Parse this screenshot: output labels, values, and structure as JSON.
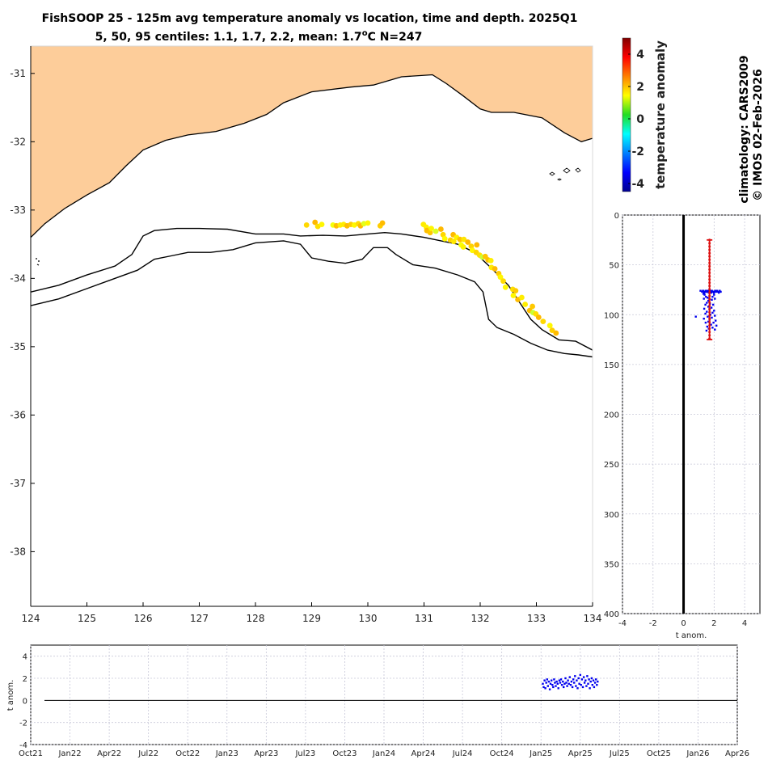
{
  "title": {
    "line1": "FishSOOP 25 - 125m avg temperature anomaly vs location, time and depth. 2025Q1",
    "line2_prefix": "5, 50, 95 centiles: 1.1, 1.7, 2.2, mean: 1.7",
    "line2_degree": "o",
    "line2_suffix": "C N=247"
  },
  "side_text": {
    "climatology": "climatology: CARS2009",
    "credit": "© IMOS 02-Feb-2026"
  },
  "colors": {
    "land": "#fdcd9a",
    "coast": "#000000",
    "profile_points": "#0000ee",
    "centile_bar": "#dd1111",
    "timeseries_points": "#0000ee"
  },
  "chart_data": [
    {
      "type": "scatter",
      "name": "map",
      "xlim": [
        124,
        134
      ],
      "ylim": [
        -38.8,
        -30.6
      ],
      "xticks": [
        124,
        125,
        126,
        127,
        128,
        129,
        130,
        131,
        132,
        133,
        134
      ],
      "yticks": [
        -31,
        -32,
        -33,
        -34,
        -35,
        -36,
        -37,
        -38
      ],
      "xtick_labels": [
        "124",
        "125",
        "126",
        "127",
        "128",
        "129",
        "130",
        "131",
        "132",
        "133",
        "134"
      ],
      "ytick_labels": [
        "-31",
        "-32",
        "-33",
        "-34",
        "-35",
        "-36",
        "-37",
        "-38"
      ],
      "coastline": [
        [
          124,
          -33.4
        ],
        [
          124.25,
          -33.2
        ],
        [
          124.6,
          -32.98
        ],
        [
          125,
          -32.78
        ],
        [
          125.4,
          -32.6
        ],
        [
          125.7,
          -32.35
        ],
        [
          126,
          -32.12
        ],
        [
          126.4,
          -31.98
        ],
        [
          126.8,
          -31.9
        ],
        [
          127.3,
          -31.85
        ],
        [
          127.8,
          -31.73
        ],
        [
          128.2,
          -31.6
        ],
        [
          128.5,
          -31.43
        ],
        [
          129,
          -31.27
        ],
        [
          129.7,
          -31.2
        ],
        [
          130.1,
          -31.17
        ],
        [
          130.6,
          -31.05
        ],
        [
          131.15,
          -31.02
        ],
        [
          131.4,
          -31.15
        ],
        [
          131.7,
          -31.33
        ],
        [
          132.0,
          -31.52
        ],
        [
          132.2,
          -31.57
        ],
        [
          132.6,
          -31.57
        ],
        [
          133.1,
          -31.65
        ],
        [
          133.5,
          -31.87
        ],
        [
          133.8,
          -32.0
        ],
        [
          134,
          -31.95
        ]
      ],
      "isobath_shallow": [
        [
          124,
          -34.2
        ],
        [
          124.5,
          -34.1
        ],
        [
          125,
          -33.95
        ],
        [
          125.5,
          -33.82
        ],
        [
          125.8,
          -33.65
        ],
        [
          126.0,
          -33.38
        ],
        [
          126.2,
          -33.3
        ],
        [
          126.6,
          -33.27
        ],
        [
          127.0,
          -33.27
        ],
        [
          127.5,
          -33.28
        ],
        [
          128.0,
          -33.35
        ],
        [
          128.5,
          -33.35
        ],
        [
          128.8,
          -33.38
        ],
        [
          129.2,
          -33.37
        ],
        [
          129.6,
          -33.38
        ],
        [
          130.0,
          -33.35
        ],
        [
          130.3,
          -33.33
        ],
        [
          130.6,
          -33.35
        ],
        [
          131.0,
          -33.4
        ],
        [
          131.3,
          -33.45
        ],
        [
          131.6,
          -33.5
        ],
        [
          131.9,
          -33.62
        ],
        [
          132.2,
          -33.85
        ],
        [
          132.5,
          -34.1
        ],
        [
          132.7,
          -34.35
        ],
        [
          132.9,
          -34.6
        ],
        [
          133.1,
          -34.75
        ],
        [
          133.4,
          -34.9
        ],
        [
          133.7,
          -34.92
        ],
        [
          134,
          -35.05
        ]
      ],
      "isobath_deep": [
        [
          124,
          -34.4
        ],
        [
          124.5,
          -34.3
        ],
        [
          125,
          -34.15
        ],
        [
          125.5,
          -34.0
        ],
        [
          125.9,
          -33.88
        ],
        [
          126.2,
          -33.72
        ],
        [
          126.5,
          -33.67
        ],
        [
          126.8,
          -33.62
        ],
        [
          127.2,
          -33.62
        ],
        [
          127.6,
          -33.58
        ],
        [
          128.0,
          -33.48
        ],
        [
          128.5,
          -33.45
        ],
        [
          128.8,
          -33.5
        ],
        [
          129.0,
          -33.7
        ],
        [
          129.3,
          -33.75
        ],
        [
          129.6,
          -33.78
        ],
        [
          129.9,
          -33.72
        ],
        [
          130.1,
          -33.55
        ],
        [
          130.35,
          -33.55
        ],
        [
          130.5,
          -33.65
        ],
        [
          130.8,
          -33.8
        ],
        [
          131.2,
          -33.85
        ],
        [
          131.6,
          -33.95
        ],
        [
          131.9,
          -34.05
        ],
        [
          132.05,
          -34.2
        ],
        [
          132.15,
          -34.6
        ],
        [
          132.3,
          -34.72
        ],
        [
          132.6,
          -34.82
        ],
        [
          132.9,
          -34.95
        ],
        [
          133.2,
          -35.05
        ],
        [
          133.5,
          -35.1
        ],
        [
          133.75,
          -35.12
        ],
        [
          134,
          -35.15
        ]
      ],
      "points": [
        [
          128.91,
          -33.22
        ],
        [
          129.06,
          -33.18
        ],
        [
          129.11,
          -33.24
        ],
        [
          129.18,
          -33.21
        ],
        [
          129.38,
          -33.22
        ],
        [
          129.44,
          -33.23
        ],
        [
          129.51,
          -33.22
        ],
        [
          129.57,
          -33.21
        ],
        [
          129.63,
          -33.23
        ],
        [
          129.7,
          -33.21
        ],
        [
          129.76,
          -33.22
        ],
        [
          129.83,
          -33.2
        ],
        [
          129.87,
          -33.23
        ],
        [
          129.93,
          -33.2
        ],
        [
          130.0,
          -33.19
        ],
        [
          130.22,
          -33.23
        ],
        [
          130.26,
          -33.19
        ],
        [
          130.99,
          -33.21
        ],
        [
          131.04,
          -33.25
        ],
        [
          131.05,
          -33.3
        ],
        [
          131.11,
          -33.33
        ],
        [
          131.13,
          -33.27
        ],
        [
          131.21,
          -33.31
        ],
        [
          131.3,
          -33.28
        ],
        [
          131.34,
          -33.36
        ],
        [
          131.37,
          -33.42
        ],
        [
          131.47,
          -33.44
        ],
        [
          131.52,
          -33.36
        ],
        [
          131.53,
          -33.46
        ],
        [
          131.58,
          -33.4
        ],
        [
          131.64,
          -33.43
        ],
        [
          131.66,
          -33.51
        ],
        [
          131.7,
          -33.54
        ],
        [
          131.71,
          -33.43
        ],
        [
          131.78,
          -33.47
        ],
        [
          131.84,
          -33.53
        ],
        [
          131.86,
          -33.59
        ],
        [
          131.93,
          -33.62
        ],
        [
          131.94,
          -33.51
        ],
        [
          131.99,
          -33.66
        ],
        [
          132.04,
          -33.69
        ],
        [
          132.09,
          -33.68
        ],
        [
          132.14,
          -33.73
        ],
        [
          132.19,
          -33.74
        ],
        [
          132.2,
          -33.84
        ],
        [
          132.26,
          -33.86
        ],
        [
          132.33,
          -33.93
        ],
        [
          132.36,
          -33.98
        ],
        [
          132.41,
          -34.04
        ],
        [
          132.45,
          -34.13
        ],
        [
          132.58,
          -34.16
        ],
        [
          132.59,
          -34.25
        ],
        [
          132.63,
          -34.18
        ],
        [
          132.67,
          -34.31
        ],
        [
          132.74,
          -34.28
        ],
        [
          132.8,
          -34.38
        ],
        [
          132.88,
          -34.47
        ],
        [
          132.93,
          -34.41
        ],
        [
          132.94,
          -34.5
        ],
        [
          132.99,
          -34.52
        ],
        [
          133.04,
          -34.57
        ],
        [
          133.12,
          -34.63
        ],
        [
          133.24,
          -34.69
        ],
        [
          133.28,
          -34.76
        ],
        [
          133.35,
          -34.8
        ]
      ],
      "colorbar": {
        "label": "temperature anomaly",
        "range": [
          -4.5,
          5
        ],
        "ticks": [
          -4,
          -2,
          0,
          2,
          4
        ],
        "tick_labels": [
          "-4",
          "-2",
          "0",
          "2",
          "4"
        ]
      }
    },
    {
      "type": "scatter",
      "name": "depth-profile",
      "xlabel": "t anom.",
      "xlim": [
        -4,
        5
      ],
      "ylim": [
        0,
        400
      ],
      "xticks": [
        -4,
        -2,
        0,
        2,
        4
      ],
      "yticks": [
        0,
        50,
        100,
        150,
        200,
        250,
        300,
        350,
        400
      ],
      "xtick_labels": [
        "-4",
        "-2",
        "0",
        "2",
        "4"
      ],
      "ytick_labels": [
        "0",
        "50",
        "100",
        "150",
        "200",
        "250",
        "300",
        "350",
        "400"
      ],
      "centile_bar": {
        "depth_range": [
          25,
          125
        ],
        "center": 1.7
      },
      "points": [
        [
          1.11,
          76
        ],
        [
          1.21,
          77
        ],
        [
          1.26,
          76
        ],
        [
          1.29,
          76
        ],
        [
          1.3,
          79
        ],
        [
          1.34,
          78
        ],
        [
          1.35,
          78
        ],
        [
          1.38,
          77
        ],
        [
          1.44,
          77
        ],
        [
          1.45,
          76
        ],
        [
          1.47,
          77
        ],
        [
          1.49,
          76
        ],
        [
          1.52,
          77
        ],
        [
          1.56,
          77
        ],
        [
          1.58,
          77
        ],
        [
          1.6,
          76
        ],
        [
          1.64,
          76
        ],
        [
          1.66,
          78
        ],
        [
          1.69,
          76
        ],
        [
          1.7,
          77
        ],
        [
          1.73,
          76
        ],
        [
          1.76,
          77
        ],
        [
          1.79,
          77
        ],
        [
          1.81,
          78
        ],
        [
          1.84,
          76
        ],
        [
          1.86,
          76
        ],
        [
          1.9,
          77
        ],
        [
          1.93,
          77
        ],
        [
          1.96,
          77
        ],
        [
          1.99,
          78
        ],
        [
          2.03,
          77
        ],
        [
          2.07,
          76
        ],
        [
          2.1,
          76
        ],
        [
          2.15,
          77
        ],
        [
          2.2,
          76
        ],
        [
          2.26,
          77
        ],
        [
          2.31,
          78
        ],
        [
          2.37,
          76
        ],
        [
          2.43,
          77
        ],
        [
          1.38,
          80
        ],
        [
          1.47,
          82
        ],
        [
          1.58,
          83
        ],
        [
          1.7,
          81
        ],
        [
          1.9,
          82
        ],
        [
          2.0,
          80
        ],
        [
          1.33,
          84
        ],
        [
          1.62,
          86
        ],
        [
          1.85,
          85
        ],
        [
          2.05,
          84
        ],
        [
          1.52,
          88
        ],
        [
          1.73,
          89
        ],
        [
          1.43,
          90
        ],
        [
          1.94,
          90
        ],
        [
          1.62,
          92
        ],
        [
          1.83,
          93
        ],
        [
          1.35,
          94
        ],
        [
          1.7,
          95
        ],
        [
          2.0,
          96
        ],
        [
          1.52,
          97
        ],
        [
          1.9,
          98
        ],
        [
          1.43,
          99
        ],
        [
          1.76,
          100
        ],
        [
          2.05,
          101
        ],
        [
          1.58,
          102
        ],
        [
          0.8,
          102
        ],
        [
          1.85,
          103
        ],
        [
          1.33,
          104
        ],
        [
          1.7,
          105
        ],
        [
          2.1,
          106
        ],
        [
          1.62,
          107
        ],
        [
          1.96,
          108
        ],
        [
          1.45,
          108
        ],
        [
          1.8,
          110
        ],
        [
          2.15,
          111
        ],
        [
          1.55,
          112
        ],
        [
          1.9,
          113
        ],
        [
          1.65,
          114
        ],
        [
          2.05,
          115
        ],
        [
          1.5,
          116
        ]
      ]
    },
    {
      "type": "scatter",
      "name": "time-series",
      "ylabel": "t anom.",
      "xlim": [
        0,
        54
      ],
      "ylim": [
        -4,
        5
      ],
      "x_axis": "months since Oct21",
      "xticks": [
        0,
        3,
        6,
        9,
        12,
        15,
        18,
        21,
        24,
        27,
        30,
        33,
        36,
        39,
        42,
        45,
        48,
        51,
        54
      ],
      "xtick_labels": [
        "Oct21",
        "Jan22",
        "Apr22",
        "Jul22",
        "Oct22",
        "Jan23",
        "Apr23",
        "Jul23",
        "Oct23",
        "Jan24",
        "Apr24",
        "Jul24",
        "Oct24",
        "Jan25",
        "Apr25",
        "Jul25",
        "Oct25",
        "Jan26",
        "Apr26"
      ],
      "yticks": [
        -4,
        -2,
        0,
        2,
        4
      ],
      "ytick_labels": [
        "-4",
        "-2",
        "0",
        "2",
        "4"
      ],
      "points": [
        [
          39.14,
          1.5
        ],
        [
          39.2,
          1.2
        ],
        [
          39.27,
          1.8
        ],
        [
          39.33,
          1.1
        ],
        [
          39.4,
          1.6
        ],
        [
          39.47,
          1.9
        ],
        [
          39.53,
          1.3
        ],
        [
          39.6,
          1.7
        ],
        [
          39.67,
          1.0
        ],
        [
          39.73,
          1.5
        ],
        [
          39.8,
          1.8
        ],
        [
          39.87,
          1.4
        ],
        [
          39.93,
          1.2
        ],
        [
          40.0,
          1.9
        ],
        [
          40.06,
          1.6
        ],
        [
          40.13,
          1.3
        ],
        [
          40.2,
          1.7
        ],
        [
          40.27,
          1.5
        ],
        [
          40.33,
          1.1
        ],
        [
          40.4,
          1.8
        ],
        [
          40.47,
          1.6
        ],
        [
          40.53,
          1.9
        ],
        [
          40.6,
          1.4
        ],
        [
          40.67,
          1.7
        ],
        [
          40.73,
          1.2
        ],
        [
          40.8,
          1.5
        ],
        [
          40.87,
          2.0
        ],
        [
          40.93,
          1.6
        ],
        [
          41.0,
          1.3
        ],
        [
          41.06,
          1.8
        ],
        [
          41.13,
          1.5
        ],
        [
          41.2,
          2.1
        ],
        [
          41.27,
          1.4
        ],
        [
          41.33,
          1.7
        ],
        [
          41.4,
          1.2
        ],
        [
          41.47,
          1.9
        ],
        [
          41.53,
          1.6
        ],
        [
          41.6,
          2.2
        ],
        [
          41.67,
          1.3
        ],
        [
          41.73,
          1.8
        ],
        [
          41.8,
          1.1
        ],
        [
          41.87,
          2.0
        ],
        [
          41.93,
          1.5
        ],
        [
          42.0,
          2.3
        ],
        [
          42.06,
          1.4
        ],
        [
          42.13,
          1.9
        ],
        [
          42.2,
          1.2
        ],
        [
          42.27,
          2.1
        ],
        [
          42.33,
          1.6
        ],
        [
          42.4,
          1.8
        ],
        [
          42.47,
          1.3
        ],
        [
          42.53,
          2.2
        ],
        [
          42.6,
          1.5
        ],
        [
          42.67,
          1.9
        ],
        [
          42.73,
          1.1
        ],
        [
          42.8,
          1.7
        ],
        [
          42.87,
          2.0
        ],
        [
          42.93,
          1.4
        ],
        [
          43.0,
          1.8
        ],
        [
          43.06,
          1.2
        ],
        [
          43.13,
          1.6
        ],
        [
          43.2,
          1.9
        ],
        [
          43.27,
          1.4
        ],
        [
          43.33,
          1.7
        ]
      ]
    }
  ]
}
